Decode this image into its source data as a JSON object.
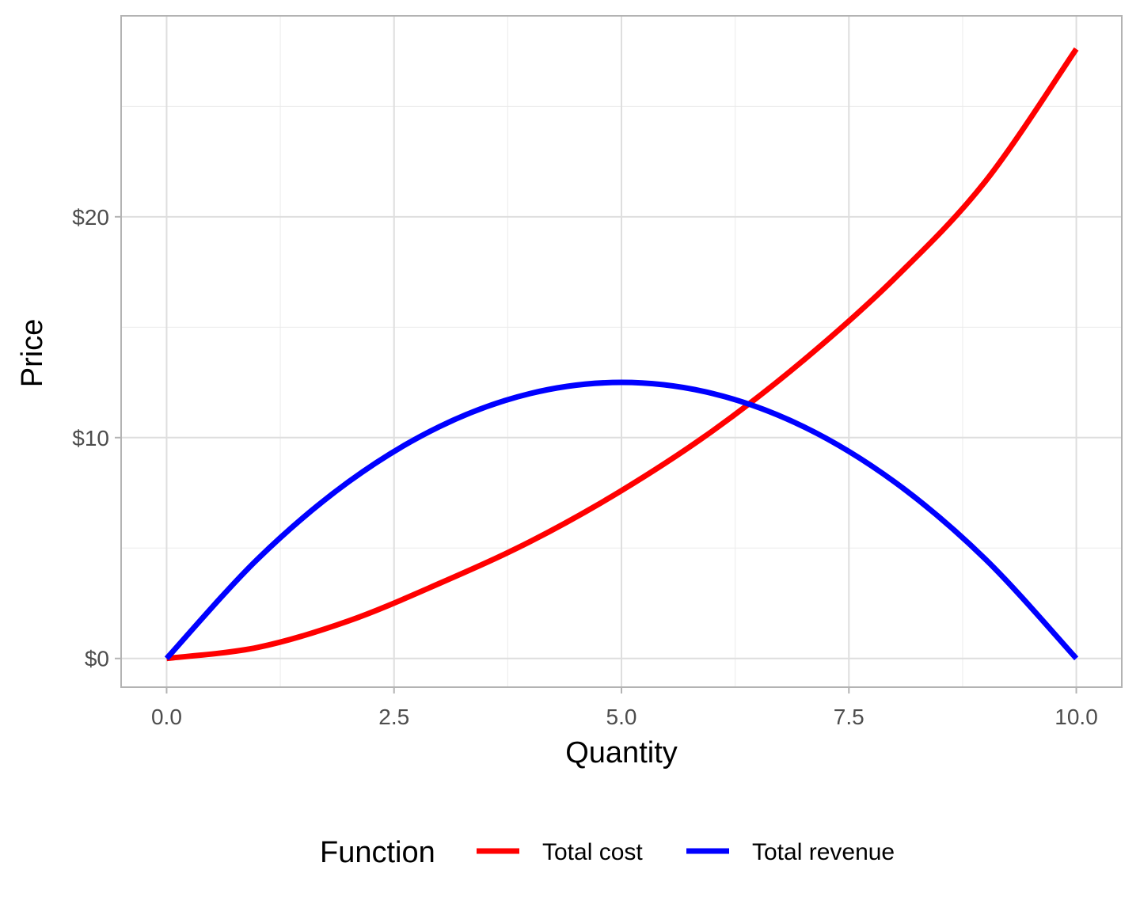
{
  "chart_data": {
    "type": "line",
    "xlabel": "Quantity",
    "ylabel": "Price",
    "xlim": [
      -0.5,
      10.5
    ],
    "ylim": [
      -1.3,
      29.1
    ],
    "x_ticks": [
      0,
      2.5,
      5,
      7.5,
      10
    ],
    "x_tick_labels": [
      "0.0",
      "2.5",
      "5.0",
      "7.5",
      "10.0"
    ],
    "y_ticks": [
      0,
      10,
      20
    ],
    "y_tick_labels": [
      "$0",
      "$10",
      "$20"
    ],
    "grid": true,
    "legend": {
      "title": "Function",
      "position": "bottom"
    },
    "series": [
      {
        "name": "Total cost",
        "color": "#ff0000",
        "x": [
          0,
          1,
          2,
          3,
          4,
          5,
          6,
          7,
          8,
          9,
          10
        ],
        "values": [
          0,
          0.5,
          1.7,
          3.4,
          5.3,
          7.6,
          10.3,
          13.5,
          17.2,
          21.6,
          27.6
        ]
      },
      {
        "name": "Total revenue",
        "color": "#0000ff",
        "x": [
          0,
          1,
          2,
          3,
          4,
          5,
          6,
          7,
          8,
          9,
          10
        ],
        "values": [
          0,
          4.5,
          8.0,
          10.5,
          12.0,
          12.5,
          12.0,
          10.5,
          8.0,
          4.5,
          0
        ]
      }
    ]
  }
}
